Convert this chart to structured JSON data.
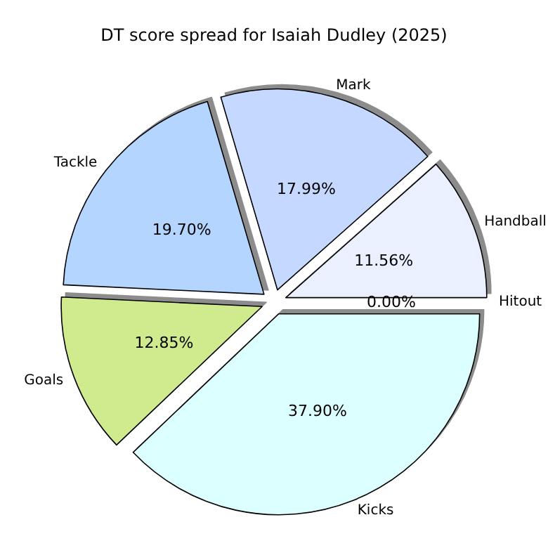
{
  "chart_data": {
    "type": "pie",
    "title": "DT score spread for Isaiah Dudley (2025)",
    "categories": [
      "Hitout",
      "Handball",
      "Mark",
      "Tackle",
      "Goals",
      "Kicks"
    ],
    "values": [
      0,
      11.56,
      17.99,
      19.7,
      12.85,
      37.9
    ],
    "value_labels": [
      "0.00%",
      "11.56%",
      "17.99%",
      "19.70%",
      "12.85%",
      "37.90%"
    ],
    "colors": [
      "#dde6ff",
      "#eaf0ff",
      "#c5d8ff",
      "#b3d5ff",
      "#d0eb8d",
      "#dcffff"
    ],
    "legend": false
  }
}
